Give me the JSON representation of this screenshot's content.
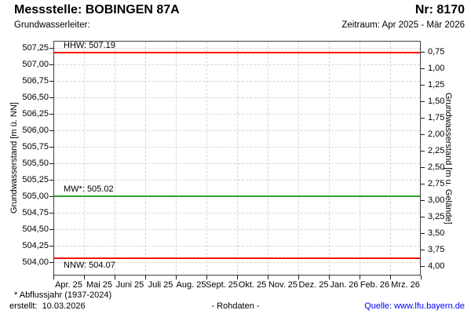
{
  "header": {
    "title": "Messstelle: BOBINGEN 87A",
    "number": "Nr: 8170",
    "aquifer_label": "Grundwasserleiter:",
    "period": "Zeitraum: Apr 2025 - Mär 2026"
  },
  "chart_data": {
    "type": "line",
    "title": "",
    "series": [],
    "x_categories": [
      "Apr. 25",
      "Mai 25",
      "Juni 25",
      "Juli 25",
      "Aug. 25",
      "Sept. 25",
      "Okt. 25",
      "Nov. 25",
      "Dez. 25",
      "Jan. 26",
      "Feb. 26",
      "Mrz. 26"
    ],
    "grid": "dashed",
    "y_left": {
      "label": "Grundwasserstand [m ü. NN]",
      "ylim": [
        503.8,
        507.36
      ],
      "tick_values": [
        507.25,
        507.0,
        506.75,
        506.5,
        506.25,
        506.0,
        505.75,
        505.5,
        505.25,
        505.0,
        504.75,
        504.5,
        504.25,
        504.0
      ],
      "tick_labels": [
        "507,25",
        "507,00",
        "506,75",
        "506,50",
        "506,25",
        "506,00",
        "505,75",
        "505,50",
        "505,25",
        "505,00",
        "504,75",
        "504,50",
        "504,25",
        "504,00"
      ]
    },
    "y_right": {
      "label": "Grundwasserstand [m u. Gelände]",
      "ground_reference_elevation": 507.94,
      "tick_values": [
        0.75,
        1.0,
        1.25,
        1.5,
        1.75,
        2.0,
        2.25,
        2.5,
        2.75,
        3.0,
        3.25,
        3.5,
        3.75,
        4.0
      ],
      "tick_labels": [
        "0,75",
        "1,00",
        "1,25",
        "1,50",
        "1,75",
        "2,00",
        "2,25",
        "2,50",
        "2,75",
        "3,00",
        "3,25",
        "3,50",
        "3,75",
        "4,00"
      ]
    },
    "reference_lines": [
      {
        "name": "HHW",
        "label": "HHW: 507.19",
        "value": 507.19,
        "color": "#ff0000",
        "label_position": "above"
      },
      {
        "name": "MW",
        "label": "MW*: 505.02",
        "value": 505.02,
        "color": "#2ca02c",
        "label_position": "above"
      },
      {
        "name": "NNW",
        "label": "NNW: 504.07",
        "value": 504.07,
        "color": "#ff0000",
        "label_position": "below"
      }
    ],
    "colors": {
      "grid": "#d7d7d7",
      "frame": "#3f3f3f",
      "high_low_line": "#ff0000",
      "mean_line": "#2ca02c"
    }
  },
  "footer": {
    "footnote": "* Abflussjahr (1937-2024)",
    "created": "erstellt:  10.03.2026",
    "data_type": "- Rohdaten -",
    "source": "Quelle: www.lfu.bayern.de",
    "source_color": "#0000ff"
  }
}
